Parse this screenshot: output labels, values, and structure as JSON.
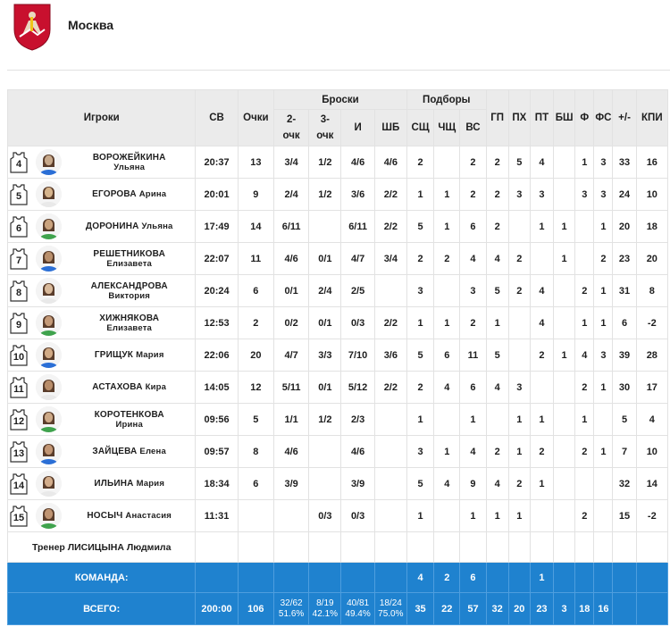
{
  "team": {
    "name": "Москва",
    "colors": {
      "header_bg": "#ebebeb",
      "summary_bg": "#1f82cf",
      "crest_red": "#c8102e"
    }
  },
  "columns": {
    "players": "Игроки",
    "sv": "СВ",
    "points": "Очки",
    "shots": "Броски",
    "two_pt": "2-очк",
    "three_pt": "3-очк",
    "fg": "И",
    "ft": "ШБ",
    "rebounds": "Подборы",
    "oreb": "СЩ",
    "dreb": "ЧЩ",
    "reb": "ВС",
    "ast": "ГП",
    "to": "ПХ",
    "stl": "ПТ",
    "blk": "БШ",
    "pf": "Ф",
    "fd": "ФС",
    "pm": "+/-",
    "eff": "КПИ"
  },
  "players": [
    {
      "num": "4",
      "last": "ВОРОЖЕЙКИНА",
      "first": "Ульяна",
      "two_line": true,
      "sv": "20:37",
      "pts": "13",
      "p2": "3/4",
      "p3": "1/2",
      "fg": "4/6",
      "ft": "4/6",
      "or": "2",
      "dr": "",
      "reb": "2",
      "ast": "2",
      "to": "5",
      "stl": "4",
      "blk": "",
      "pf": "1",
      "fd": "3",
      "pm": "33",
      "eff": "16"
    },
    {
      "num": "5",
      "last": "ЕГОРОВА",
      "first": "Арина",
      "two_line": false,
      "sv": "20:01",
      "pts": "9",
      "p2": "2/4",
      "p3": "1/2",
      "fg": "3/6",
      "ft": "2/2",
      "or": "1",
      "dr": "1",
      "reb": "2",
      "ast": "2",
      "to": "3",
      "stl": "3",
      "blk": "",
      "pf": "3",
      "fd": "3",
      "pm": "24",
      "eff": "10"
    },
    {
      "num": "6",
      "last": "ДОРОНИНА",
      "first": "Ульяна",
      "two_line": false,
      "sv": "17:49",
      "pts": "14",
      "p2": "6/11",
      "p3": "",
      "fg": "6/11",
      "ft": "2/2",
      "or": "5",
      "dr": "1",
      "reb": "6",
      "ast": "2",
      "to": "",
      "stl": "1",
      "blk": "1",
      "pf": "",
      "fd": "1",
      "pm": "20",
      "eff": "18"
    },
    {
      "num": "7",
      "last": "РЕШЕТНИКОВА",
      "first": "Елизавета",
      "two_line": true,
      "sv": "22:07",
      "pts": "11",
      "p2": "4/6",
      "p3": "0/1",
      "fg": "4/7",
      "ft": "3/4",
      "or": "2",
      "dr": "2",
      "reb": "4",
      "ast": "4",
      "to": "2",
      "stl": "",
      "blk": "1",
      "pf": "",
      "fd": "2",
      "pm": "23",
      "eff": "20"
    },
    {
      "num": "8",
      "last": "АЛЕКСАНДРОВА",
      "first": "Виктория",
      "two_line": true,
      "sv": "20:24",
      "pts": "6",
      "p2": "0/1",
      "p3": "2/4",
      "fg": "2/5",
      "ft": "",
      "or": "3",
      "dr": "",
      "reb": "3",
      "ast": "5",
      "to": "2",
      "stl": "4",
      "blk": "",
      "pf": "2",
      "fd": "1",
      "pm": "31",
      "eff": "8"
    },
    {
      "num": "9",
      "last": "ХИЖНЯКОВА",
      "first": "Елизавета",
      "two_line": true,
      "sv": "12:53",
      "pts": "2",
      "p2": "0/2",
      "p3": "0/1",
      "fg": "0/3",
      "ft": "2/2",
      "or": "1",
      "dr": "1",
      "reb": "2",
      "ast": "1",
      "to": "",
      "stl": "4",
      "blk": "",
      "pf": "1",
      "fd": "1",
      "pm": "6",
      "eff": "-2"
    },
    {
      "num": "10",
      "last": "ГРИЩУК",
      "first": "Мария",
      "two_line": false,
      "sv": "22:06",
      "pts": "20",
      "p2": "4/7",
      "p3": "3/3",
      "fg": "7/10",
      "ft": "3/6",
      "or": "5",
      "dr": "6",
      "reb": "11",
      "ast": "5",
      "to": "",
      "stl": "2",
      "blk": "1",
      "pf": "4",
      "fd": "3",
      "pm": "39",
      "eff": "28"
    },
    {
      "num": "11",
      "last": "АСТАХОВА",
      "first": "Кира",
      "two_line": false,
      "sv": "14:05",
      "pts": "12",
      "p2": "5/11",
      "p3": "0/1",
      "fg": "5/12",
      "ft": "2/2",
      "or": "2",
      "dr": "4",
      "reb": "6",
      "ast": "4",
      "to": "3",
      "stl": "",
      "blk": "",
      "pf": "2",
      "fd": "1",
      "pm": "30",
      "eff": "17"
    },
    {
      "num": "12",
      "last": "КОРОТЕНКОВА",
      "first": "Ирина",
      "two_line": true,
      "sv": "09:56",
      "pts": "5",
      "p2": "1/1",
      "p3": "1/2",
      "fg": "2/3",
      "ft": "",
      "or": "1",
      "dr": "",
      "reb": "1",
      "ast": "",
      "to": "1",
      "stl": "1",
      "blk": "",
      "pf": "1",
      "fd": "",
      "pm": "5",
      "eff": "4"
    },
    {
      "num": "13",
      "last": "ЗАЙЦЕВА",
      "first": "Елена",
      "two_line": false,
      "sv": "09:57",
      "pts": "8",
      "p2": "4/6",
      "p3": "",
      "fg": "4/6",
      "ft": "",
      "or": "3",
      "dr": "1",
      "reb": "4",
      "ast": "2",
      "to": "1",
      "stl": "2",
      "blk": "",
      "pf": "2",
      "fd": "1",
      "pm": "7",
      "eff": "10"
    },
    {
      "num": "14",
      "last": "ИЛЬИНА",
      "first": "Мария",
      "two_line": false,
      "sv": "18:34",
      "pts": "6",
      "p2": "3/9",
      "p3": "",
      "fg": "3/9",
      "ft": "",
      "or": "5",
      "dr": "4",
      "reb": "9",
      "ast": "4",
      "to": "2",
      "stl": "1",
      "blk": "",
      "pf": "",
      "fd": "",
      "pm": "32",
      "eff": "14"
    },
    {
      "num": "15",
      "last": "НОСЫЧ",
      "first": "Анастасия",
      "two_line": false,
      "sv": "11:31",
      "pts": "",
      "p2": "",
      "p3": "0/3",
      "fg": "0/3",
      "ft": "",
      "or": "1",
      "dr": "",
      "reb": "1",
      "ast": "1",
      "to": "1",
      "stl": "",
      "blk": "",
      "pf": "2",
      "fd": "",
      "pm": "15",
      "eff": "-2"
    }
  ],
  "coach": "Тренер ЛИСИЦЫНА Людмила",
  "team_row": {
    "label": "КОМАНДА:",
    "or": "4",
    "dr": "2",
    "reb": "6",
    "stl": "1"
  },
  "totals": {
    "label": "ВСЕГО:",
    "sv": "200:00",
    "pts": "106",
    "p2": "32/62",
    "p2_pct": "51.6%",
    "p3": "8/19",
    "p3_pct": "42.1%",
    "fg": "40/81",
    "fg_pct": "49.4%",
    "ft": "18/24",
    "ft_pct": "75.0%",
    "or": "35",
    "dr": "22",
    "reb": "57",
    "ast": "32",
    "to": "20",
    "stl": "23",
    "blk": "3",
    "pf": "18",
    "fd": "16"
  }
}
